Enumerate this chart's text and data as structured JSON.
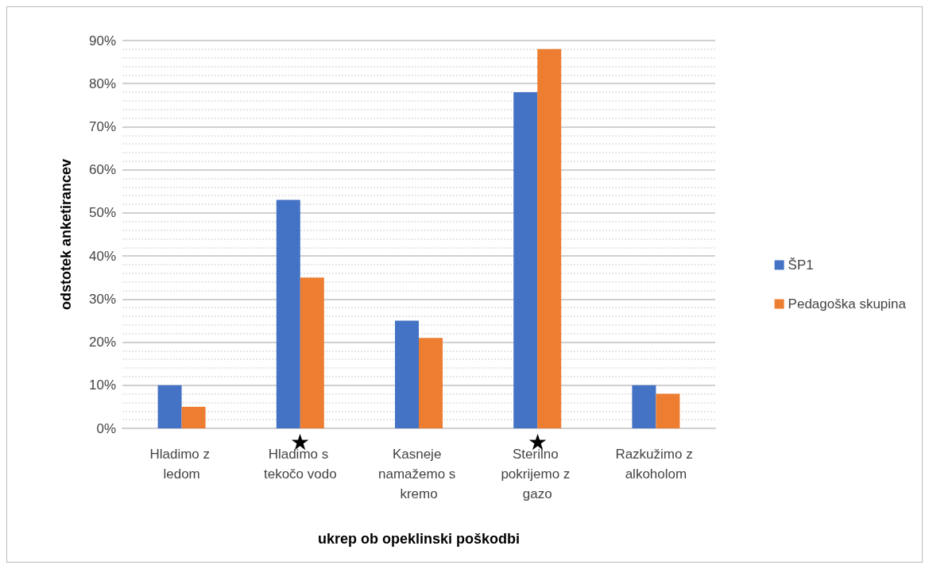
{
  "chart_data": {
    "type": "bar",
    "xlabel": "ukrep ob opeklinski poškodbi",
    "ylabel": "odstotek anketirancev",
    "categories": [
      "Hladimo z ledom",
      "Hladimo s tekočo vodo",
      "Kasneje namažemo s kremo",
      "Sterilno pokrijemo z gazo",
      "Razkužimo z alkoholom"
    ],
    "series": [
      {
        "name": "ŠP1",
        "color": "#4472c4",
        "values": [
          10,
          53,
          25,
          78,
          10
        ]
      },
      {
        "name": "Pedagoška skupina",
        "color": "#ed7d31",
        "values": [
          5,
          35,
          21,
          88,
          8
        ]
      }
    ],
    "ylim": [
      0,
      90
    ],
    "yticks": [
      {
        "value": 0,
        "label": "0%"
      },
      {
        "value": 10,
        "label": "10%"
      },
      {
        "value": 20,
        "label": "20%"
      },
      {
        "value": 30,
        "label": "30%"
      },
      {
        "value": 40,
        "label": "40%"
      },
      {
        "value": 50,
        "label": "50%"
      },
      {
        "value": 60,
        "label": "60%"
      },
      {
        "value": 70,
        "label": "70%"
      },
      {
        "value": 80,
        "label": "80%"
      },
      {
        "value": 90,
        "label": "90%"
      }
    ],
    "grid": "y",
    "legend": "right",
    "annotations": [
      {
        "text": "★",
        "x": "Hladimo s tekočo vodo",
        "y": 0
      },
      {
        "text": "★",
        "x": "Sterilno pokrijemo z gazo",
        "y": 0
      }
    ]
  }
}
